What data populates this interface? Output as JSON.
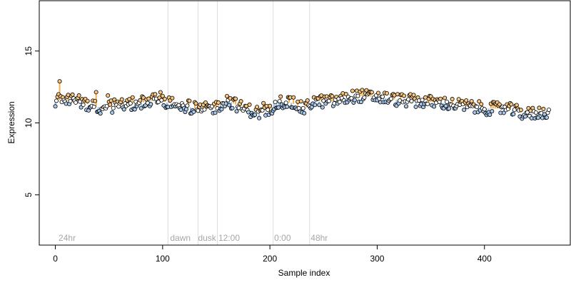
{
  "chart_data": {
    "type": "scatter",
    "title": "",
    "xlabel": "Sample index",
    "ylabel": "Expression",
    "xlim": [
      -15,
      480
    ],
    "ylim": [
      1.5,
      18.5
    ],
    "xticks": [
      0,
      100,
      200,
      300,
      400
    ],
    "yticks": [
      5,
      10,
      15
    ],
    "grid": false,
    "legend": "none",
    "colors": {
      "point_fill_a": "#a8c8ec",
      "point_fill_b": "#f7c57e",
      "segment_a": "#9fc4ea",
      "segment_b": "#f5b04a",
      "separator": "#dcdcdc",
      "annotation": "#a6a6a6"
    },
    "n_points": 461,
    "baseline_profile": [
      [
        0,
        11.6
      ],
      [
        20,
        11.55
      ],
      [
        35,
        11.2
      ],
      [
        45,
        11.0
      ],
      [
        55,
        11.2
      ],
      [
        75,
        11.35
      ],
      [
        95,
        11.6
      ],
      [
        105,
        11.4
      ],
      [
        120,
        11.2
      ],
      [
        135,
        10.9
      ],
      [
        150,
        11.1
      ],
      [
        160,
        11.6
      ],
      [
        175,
        11.0
      ],
      [
        190,
        10.7
      ],
      [
        200,
        10.8
      ],
      [
        205,
        11.5
      ],
      [
        220,
        11.4
      ],
      [
        232,
        10.95
      ],
      [
        240,
        11.5
      ],
      [
        260,
        11.5
      ],
      [
        280,
        11.9
      ],
      [
        300,
        11.8
      ],
      [
        320,
        11.6
      ],
      [
        340,
        11.5
      ],
      [
        360,
        11.4
      ],
      [
        380,
        11.2
      ],
      [
        400,
        11.0
      ],
      [
        420,
        11.0
      ],
      [
        440,
        10.6
      ],
      [
        460,
        10.8
      ]
    ],
    "separators": [
      105,
      133,
      151,
      203,
      237
    ],
    "annotations": [
      {
        "x": 3,
        "label": "24hr"
      },
      {
        "x": 107,
        "label": "dawn"
      },
      {
        "x": 133,
        "label": "dusk"
      },
      {
        "x": 152,
        "label": "12:00"
      },
      {
        "x": 204,
        "label": "0:00"
      },
      {
        "x": 238,
        "label": "48hr"
      }
    ]
  }
}
